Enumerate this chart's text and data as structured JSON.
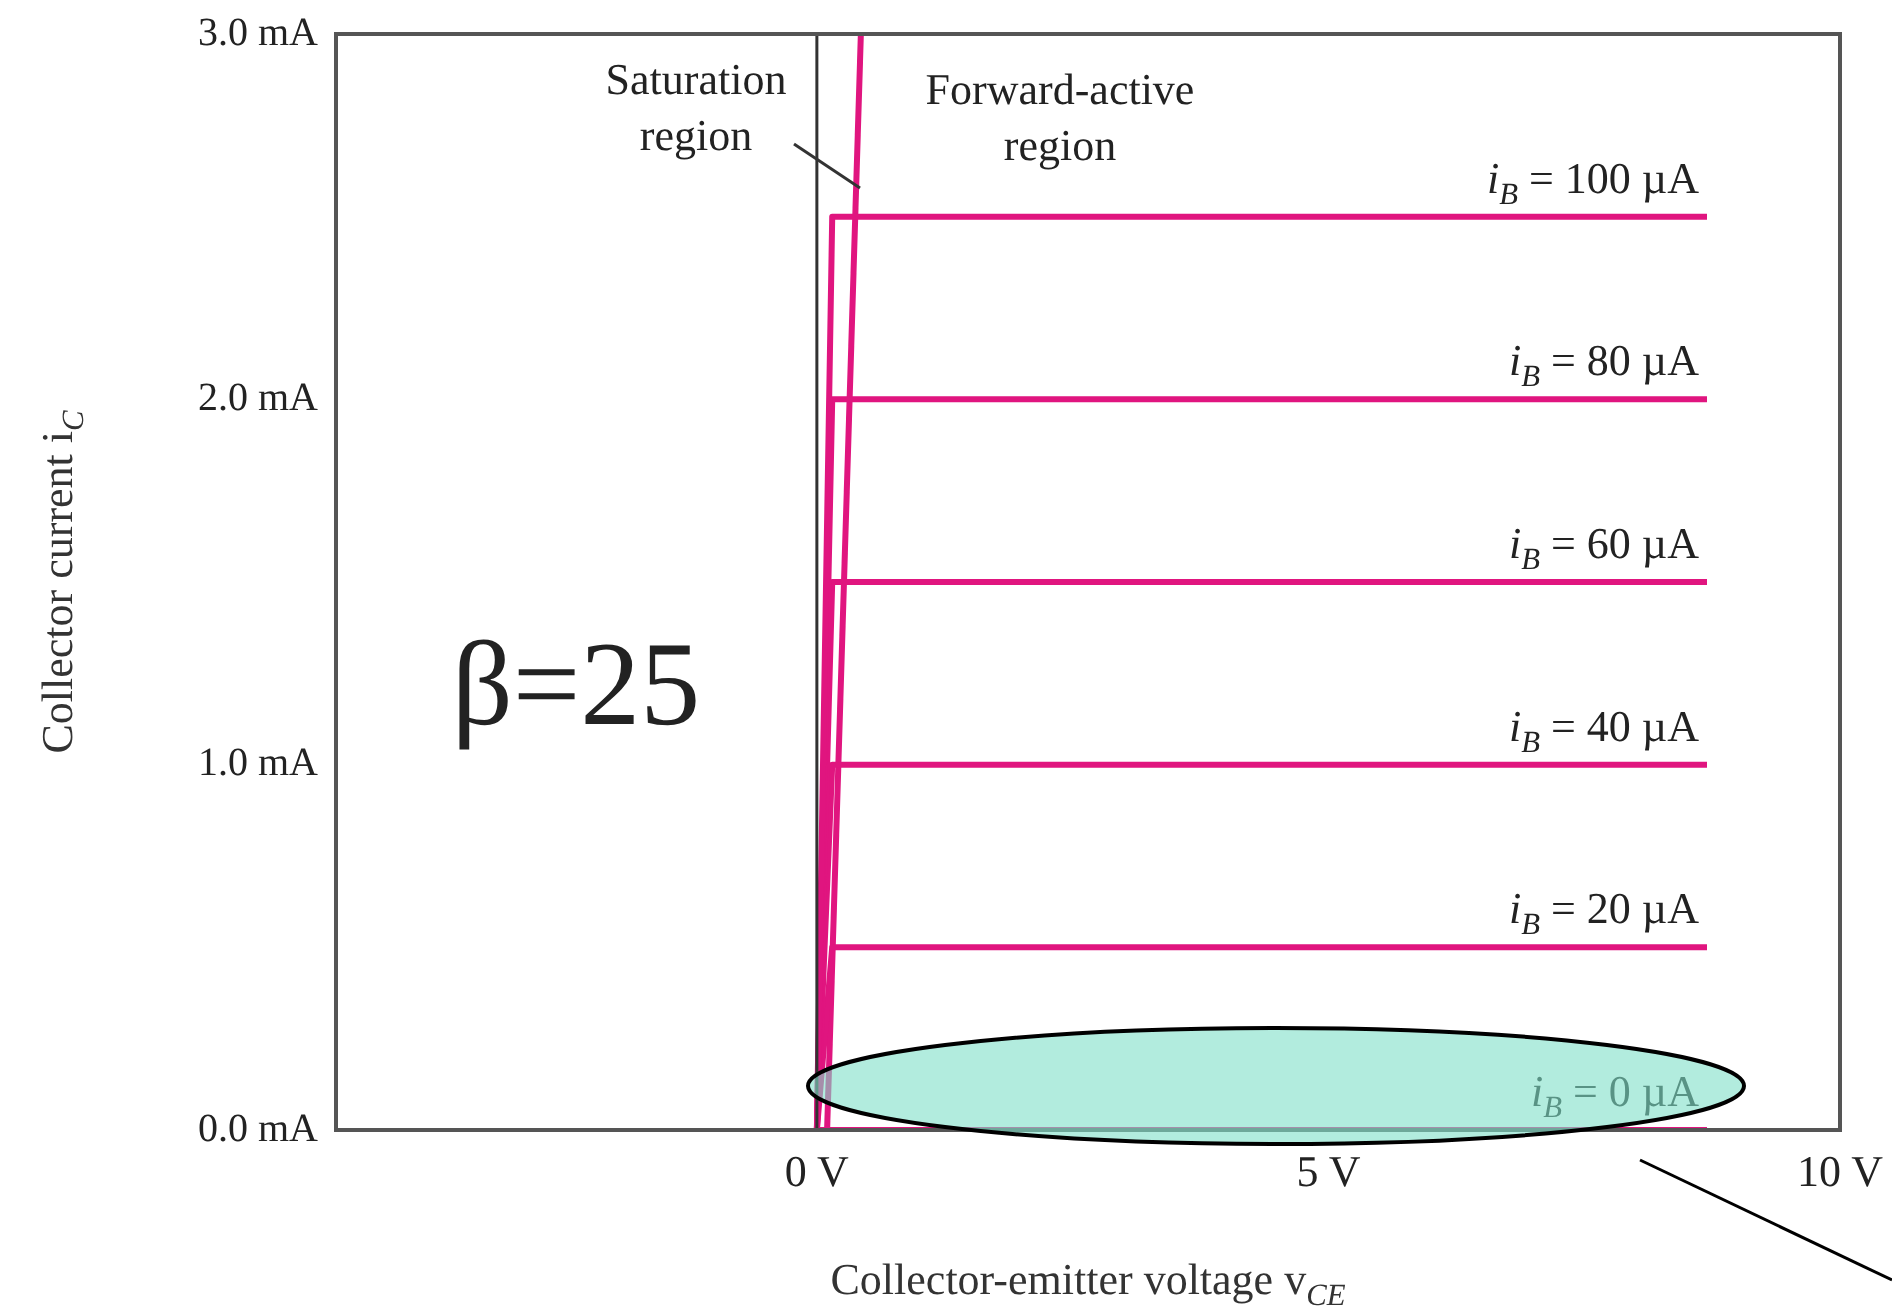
{
  "chart_data": {
    "type": "line",
    "xlabel": "Collector-emitter voltage v$_{CE}$",
    "ylabel": "Collector current i$_{C}$",
    "xlim": [
      -4.7,
      10
    ],
    "xticks": [
      {
        "value": 0,
        "label": "0 V"
      },
      {
        "value": 5,
        "label": "5 V"
      },
      {
        "value": 10,
        "label": "10 V"
      }
    ],
    "ylim": [
      0,
      3
    ],
    "yticks": [
      {
        "value": 0,
        "label": "0.0 mA"
      },
      {
        "value": 1,
        "label": "1.0 mA"
      },
      {
        "value": 2,
        "label": "2.0 mA"
      },
      {
        "value": 3,
        "label": "3.0 mA"
      }
    ],
    "grid": false,
    "legend": false,
    "marker": "none",
    "line_style": "solid",
    "series": [
      {
        "name": "i$_{B}$ = 100 µA",
        "color": "#e0157f",
        "x": [
          0,
          0.15,
          8.7
        ],
        "values": [
          0,
          2.5,
          2.5
        ]
      },
      {
        "name": "i$_{B}$ = 80 µA",
        "color": "#e0157f",
        "x": [
          0,
          0.15,
          8.7
        ],
        "values": [
          0,
          2.0,
          2.0
        ]
      },
      {
        "name": "i$_{B}$ = 60 µA",
        "color": "#e0157f",
        "x": [
          0,
          0.15,
          8.7
        ],
        "values": [
          0,
          1.5,
          1.5
        ]
      },
      {
        "name": "i$_{B}$ = 40 µA",
        "color": "#e0157f",
        "x": [
          0,
          0.15,
          8.7
        ],
        "values": [
          0,
          1.0,
          1.0
        ]
      },
      {
        "name": "i$_{B}$ = 20 µA",
        "color": "#e0157f",
        "x": [
          0,
          0.15,
          8.7
        ],
        "values": [
          0,
          0.5,
          0.5
        ]
      },
      {
        "name": "i$_{B}$ = 0 µA",
        "color": "#e0157f",
        "x": [
          0,
          8.7
        ],
        "values": [
          0,
          0
        ]
      },
      {
        "color": "#e0157f",
        "x": [
          0.1,
          0.43
        ],
        "values": [
          0,
          3
        ]
      }
    ],
    "ref_lines": [
      {
        "axis": "x",
        "value": 0,
        "color": "#333333"
      }
    ],
    "annotations": [
      "Saturation region",
      "Forward-active region",
      "β=25"
    ]
  }
}
